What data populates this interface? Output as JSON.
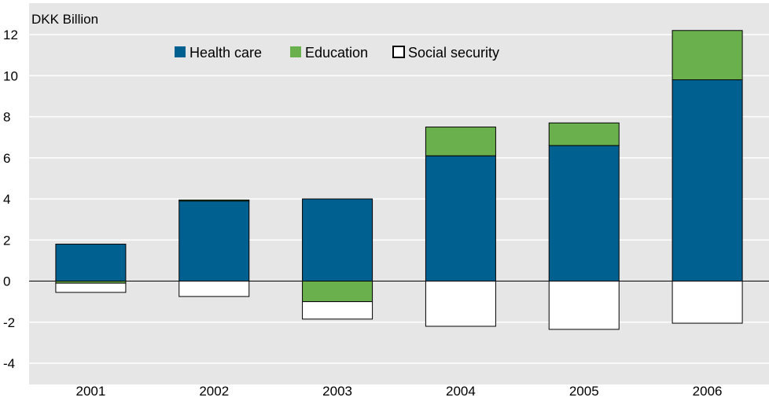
{
  "chart_data": {
    "type": "bar",
    "stacked": true,
    "ylabel": "DKK Billion",
    "ylim": [
      -4,
      12
    ],
    "yticks": [
      -4,
      -2,
      0,
      2,
      4,
      6,
      8,
      10,
      12
    ],
    "grid": true,
    "legend_position": "top",
    "categories": [
      "2001",
      "2002",
      "2003",
      "2004",
      "2005",
      "2006"
    ],
    "series": [
      {
        "name": "Health care",
        "color": "#00608f",
        "values": [
          1.8,
          3.9,
          4.0,
          6.1,
          6.6,
          9.8
        ]
      },
      {
        "name": "Education",
        "color": "#6ab04c",
        "values": [
          -0.1,
          0.05,
          -1.0,
          1.4,
          1.1,
          2.4
        ]
      },
      {
        "name": "Social security",
        "color": "#ffffff",
        "values": [
          -0.45,
          -0.75,
          -0.85,
          -2.2,
          -2.35,
          -2.05
        ]
      }
    ]
  },
  "colors": {
    "plot_background": "#e6e6e6",
    "gridline": "#ffffff",
    "bar_border": "#000000"
  }
}
